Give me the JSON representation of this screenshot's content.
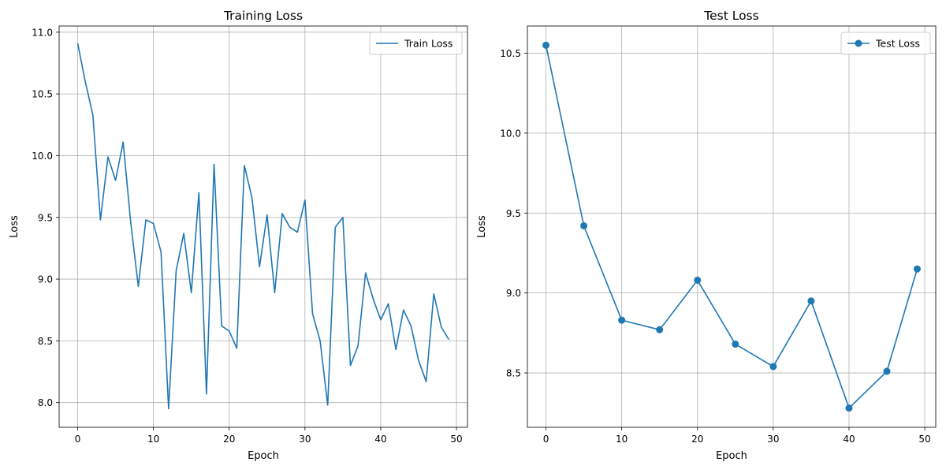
{
  "chart_data": [
    {
      "type": "line",
      "title": "Training Loss",
      "xlabel": "Epoch",
      "ylabel": "Loss",
      "xlim": [
        -2.45,
        51.45
      ],
      "ylim": [
        7.8,
        11.05
      ],
      "xticks": [
        0,
        10,
        20,
        30,
        40,
        50
      ],
      "yticks": [
        8.0,
        8.5,
        9.0,
        9.5,
        10.0,
        10.5,
        11.0
      ],
      "xtick_labels": [
        "0",
        "10",
        "20",
        "30",
        "40",
        "50"
      ],
      "ytick_labels": [
        "8.0",
        "8.5",
        "9.0",
        "9.5",
        "10.0",
        "10.5",
        "11.0"
      ],
      "grid": true,
      "legend": "top-right",
      "color": "#1f77b4",
      "series": [
        {
          "name": "Train Loss",
          "marker": false,
          "x": [
            0,
            1,
            2,
            3,
            4,
            5,
            6,
            7,
            8,
            9,
            10,
            11,
            12,
            13,
            14,
            15,
            16,
            17,
            18,
            19,
            20,
            21,
            22,
            23,
            24,
            25,
            26,
            27,
            28,
            29,
            30,
            31,
            32,
            33,
            34,
            35,
            36,
            37,
            38,
            39,
            40,
            41,
            42,
            43,
            44,
            45,
            46,
            47,
            48,
            49
          ],
          "y": [
            10.91,
            10.6,
            10.33,
            9.48,
            9.99,
            9.8,
            10.11,
            9.46,
            8.94,
            9.48,
            9.45,
            9.22,
            7.95,
            9.07,
            9.37,
            8.89,
            9.7,
            8.07,
            9.93,
            8.62,
            8.58,
            8.44,
            9.92,
            9.66,
            9.1,
            9.52,
            8.89,
            9.53,
            9.42,
            9.38,
            9.64,
            8.72,
            8.5,
            7.98,
            9.42,
            9.5,
            8.3,
            8.46,
            9.05,
            8.84,
            8.67,
            8.8,
            8.43,
            8.75,
            8.62,
            8.34,
            8.17,
            8.88,
            8.61,
            8.51
          ]
        }
      ]
    },
    {
      "type": "line",
      "title": "Test Loss",
      "xlabel": "Epoch",
      "ylabel": "Loss",
      "xlim": [
        -2.45,
        51.45
      ],
      "ylim": [
        8.16,
        10.67
      ],
      "xticks": [
        0,
        10,
        20,
        30,
        40,
        50
      ],
      "yticks": [
        8.5,
        9.0,
        9.5,
        10.0,
        10.5
      ],
      "xtick_labels": [
        "0",
        "10",
        "20",
        "30",
        "40",
        "50"
      ],
      "ytick_labels": [
        "8.5",
        "9.0",
        "9.5",
        "10.0",
        "10.5"
      ],
      "grid": true,
      "legend": "top-right",
      "color": "#1f77b4",
      "series": [
        {
          "name": "Test Loss",
          "marker": true,
          "x": [
            0,
            5,
            10,
            15,
            20,
            25,
            30,
            35,
            40,
            45,
            49
          ],
          "y": [
            10.55,
            9.42,
            8.83,
            8.77,
            9.08,
            8.68,
            8.54,
            8.95,
            8.28,
            8.51,
            9.15
          ]
        }
      ]
    }
  ]
}
